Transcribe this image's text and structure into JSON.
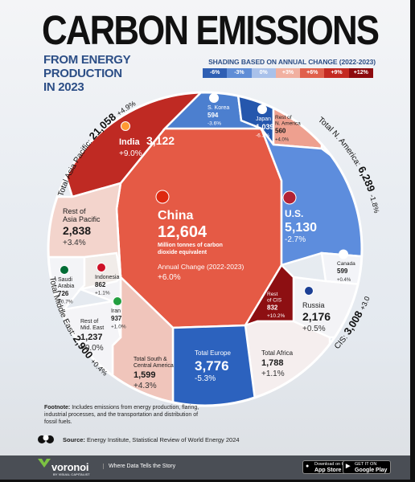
{
  "header": {
    "title": "CARBON EMISSIONS",
    "subtitle_line1": "FROM ENERGY PRODUCTION",
    "subtitle_line2": "IN 2023"
  },
  "legend": {
    "title": "SHADING BASED ON ANNUAL CHANGE (2022-2023)",
    "labels": [
      "-6%",
      "-3%",
      "0%",
      "+3%",
      "+6%",
      "+9%",
      "+12%"
    ],
    "colors": [
      "#2f5fb3",
      "#5f8dd6",
      "#a9c1ea",
      "#f1b0a0",
      "#e0604c",
      "#c42a22",
      "#8d0a0e"
    ]
  },
  "footnote": {
    "label": "Footnote:",
    "text": "Includes emissions from energy production, flaring, industrial processes, and the transportation and distribution of fossil fuels."
  },
  "source": {
    "label": "Source:",
    "text": "Energy Institute, Statistical Review of World Energy 2024",
    "icon": "group-of-people-icon"
  },
  "footer": {
    "brand": "voronoi",
    "brand_sub": "BY VISUAL CAPITALIST",
    "tagline": "Where Data Tells the Story",
    "app_store_top": "Download on the",
    "app_store": "App Store",
    "google_play_top": "GET IT ON",
    "google_play": "Google Play"
  },
  "chart_data": {
    "type": "treemap",
    "units": "Million tonnes of carbon dioxide equivalent",
    "regions": [
      {
        "name": "Total Asia Pacific",
        "value": "21,058",
        "change": "+4.9%"
      },
      {
        "name": "Total N. America",
        "value": "6,289",
        "change": "-1.8%"
      },
      {
        "name": "CIS",
        "value": "3,008",
        "change": "+3.0%"
      },
      {
        "name": "Total Middle East",
        "value": "2,900",
        "change": "+0.4%"
      }
    ],
    "cells": [
      {
        "name": "China",
        "value": 12604,
        "label": "12,604",
        "change": "+6.0%",
        "sub": "Million tonnes of carbon dioxide equivalent",
        "change_label": "Annual Change (2022-2023)",
        "color": "#e55a45",
        "flag": "china-flag-icon"
      },
      {
        "name": "India",
        "value": 3122,
        "label": "3,122",
        "change": "+9.0%",
        "color": "#bf2a23",
        "flag": "india-flag-icon"
      },
      {
        "name": "S. Korea",
        "value": 594,
        "label": "594",
        "change": "-3.6%",
        "color": "#4c7fcf",
        "flag": "south-korea-flag-icon"
      },
      {
        "name": "Japan",
        "value": 1039,
        "label": "1,039",
        "change": "-6.3%",
        "color": "#2557ad",
        "flag": "japan-flag-icon"
      },
      {
        "name": "Rest of N. America",
        "value": 560,
        "label": "560",
        "change": "+4.0%",
        "color": "#eea08f"
      },
      {
        "name": "U.S.",
        "value": 5130,
        "label": "5,130",
        "change": "-2.7%",
        "color": "#5d8ddd",
        "flag": "us-flag-icon"
      },
      {
        "name": "Canada",
        "value": 599,
        "label": "599",
        "change": "+0.4%",
        "color": "#f3f4f8",
        "flag": "canada-flag-icon"
      },
      {
        "name": "Russia",
        "value": 2176,
        "label": "2,176",
        "change": "+0.5%",
        "color": "#f3f3f6",
        "flag": "russia-flag-icon"
      },
      {
        "name": "Rest of CIS",
        "value": 832,
        "label": "832",
        "change": "+10.2%",
        "color": "#8d0f12"
      },
      {
        "name": "Total Africa",
        "value": 1788,
        "label": "1,788",
        "change": "+1.1%",
        "color": "#f5eeee"
      },
      {
        "name": "Total Europe",
        "value": 3776,
        "label": "3,776",
        "change": "-5.3%",
        "color": "#2c62be"
      },
      {
        "name": "Total South & Central America",
        "value": 1599,
        "label": "1,599",
        "change": "+4.3%",
        "color": "#f0c5bb"
      },
      {
        "name": "Rest of Mid. East",
        "value": 1237,
        "label": "1,237",
        "change": "+0.0%",
        "color": "#f4f4f7"
      },
      {
        "name": "Iran",
        "value": 937,
        "label": "937",
        "change": "+1.0%",
        "color": "#f3f3f6",
        "flag": "iran-flag-icon"
      },
      {
        "name": "Saudi Arabia",
        "value": 726,
        "label": "726",
        "change": "+0.7%",
        "color": "#f3f4f7",
        "flag": "saudi-arabia-flag-icon"
      },
      {
        "name": "Indonesia",
        "value": 862,
        "label": "862",
        "change": "+1.1%",
        "color": "#f1ece9",
        "flag": "indonesia-flag-icon"
      },
      {
        "name": "Rest of Asia Pacific",
        "value": 2838,
        "label": "2,838",
        "change": "+3.4%",
        "color": "#f3d4cc"
      }
    ]
  }
}
